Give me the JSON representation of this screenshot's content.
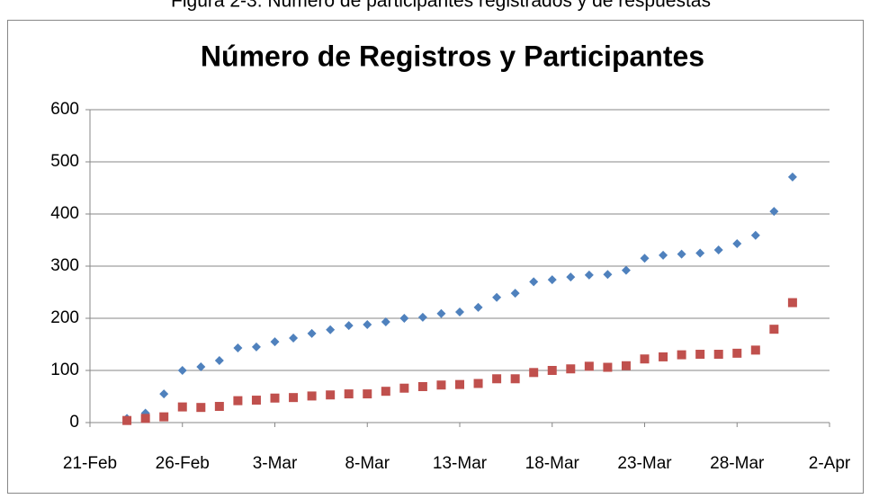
{
  "chart_data": {
    "type": "scatter",
    "caption": "Figura 2-3: Número de participantes registrados y de respuestas",
    "title": "Número de Registros y Participantes",
    "x": [
      "23-Feb",
      "24-Feb",
      "25-Feb",
      "26-Feb",
      "27-Feb",
      "28-Feb",
      "1-Mar",
      "2-Mar",
      "3-Mar",
      "4-Mar",
      "5-Mar",
      "6-Mar",
      "7-Mar",
      "8-Mar",
      "9-Mar",
      "10-Mar",
      "11-Mar",
      "12-Mar",
      "13-Mar",
      "14-Mar",
      "15-Mar",
      "16-Mar",
      "17-Mar",
      "18-Mar",
      "19-Mar",
      "20-Mar",
      "21-Mar",
      "22-Mar",
      "23-Mar",
      "24-Mar",
      "25-Mar",
      "26-Mar",
      "27-Mar",
      "28-Mar",
      "29-Mar",
      "30-Mar",
      "31-Mar"
    ],
    "series": [
      {
        "color": "#4f81bd",
        "marker": "diamond",
        "values": [
          8,
          18,
          55,
          100,
          107,
          119,
          143,
          145,
          155,
          162,
          171,
          178,
          186,
          188,
          193,
          200,
          202,
          209,
          212,
          221,
          240,
          248,
          270,
          274,
          279,
          283,
          284,
          292,
          315,
          321,
          323,
          325,
          331,
          343,
          359,
          405,
          471
        ]
      },
      {
        "color": "#c0504d",
        "marker": "square",
        "values": [
          4,
          8,
          11,
          30,
          29,
          31,
          42,
          43,
          47,
          48,
          51,
          53,
          55,
          55,
          60,
          66,
          69,
          72,
          73,
          75,
          84,
          84,
          96,
          100,
          103,
          108,
          106,
          109,
          122,
          126,
          130,
          131,
          131,
          133,
          139,
          179,
          230
        ]
      }
    ],
    "xlim": [
      "21-Feb",
      "2-Apr"
    ],
    "xticks": [
      "21-Feb",
      "26-Feb",
      "3-Mar",
      "8-Mar",
      "13-Mar",
      "18-Mar",
      "23-Mar",
      "28-Mar",
      "2-Apr"
    ],
    "ylim": [
      0,
      600
    ],
    "yticks": [
      0,
      100,
      200,
      300,
      400,
      500,
      600
    ],
    "grid": true
  }
}
